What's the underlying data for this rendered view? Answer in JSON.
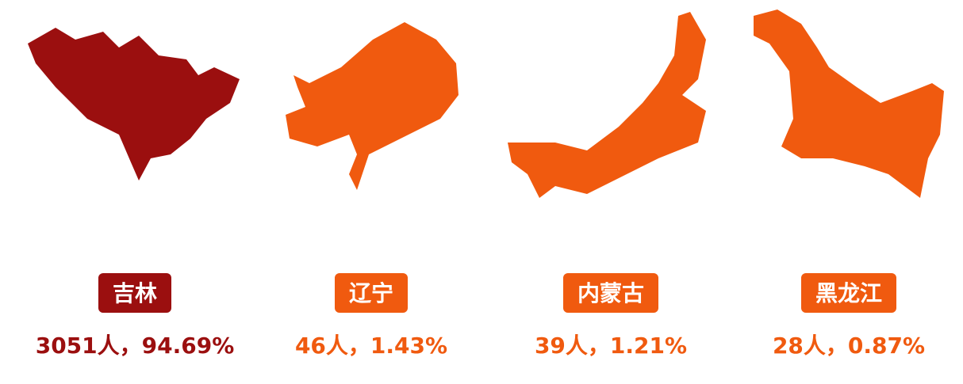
{
  "items": [
    {
      "name": "吉林",
      "stat": "3051人，94.69%",
      "color": "#9b0f0f"
    },
    {
      "name": "辽宁",
      "stat": "46人，1.43%",
      "color": "#f05a0f"
    },
    {
      "name": "内蒙古",
      "stat": "39人，1.21%",
      "color": "#f05a0f"
    },
    {
      "name": "黑龙江",
      "stat": "28人，0.87%",
      "color": "#f05a0f"
    }
  ]
}
